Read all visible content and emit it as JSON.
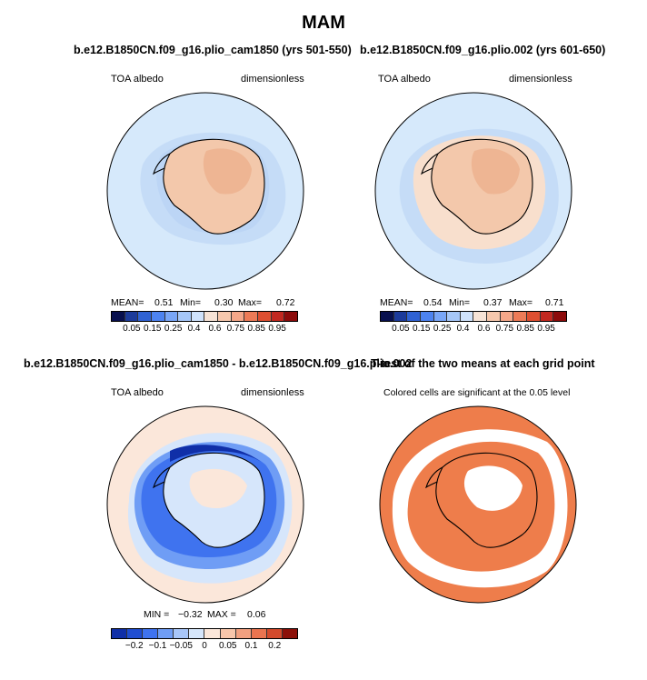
{
  "figure_title": "MAM",
  "panels": [
    {
      "title": "b.e12.B1850CN.f09_g16.plio_cam1850 (yrs 501-550)",
      "left_label": "TOA albedo",
      "right_label": "dimensionless",
      "stats": {
        "mean_label": "MEAN=",
        "mean": "0.51",
        "min_label": "Min=",
        "min": "0.30",
        "max_label": "Max=",
        "max": "0.72"
      },
      "colorbar": [
        "0.05",
        "0.15",
        "0.25",
        "0.4",
        "0.6",
        "0.75",
        "0.85",
        "0.95"
      ]
    },
    {
      "title": "b.e12.B1850CN.f09_g16.plio.002 (yrs 601-650)",
      "left_label": "TOA albedo",
      "right_label": "dimensionless",
      "stats": {
        "mean_label": "MEAN=",
        "mean": "0.54",
        "min_label": "Min=",
        "min": "0.37",
        "max_label": "Max=",
        "max": "0.71"
      },
      "colorbar": [
        "0.05",
        "0.15",
        "0.25",
        "0.4",
        "0.6",
        "0.75",
        "0.85",
        "0.95"
      ]
    },
    {
      "title": "b.e12.B1850CN.f09_g16.plio_cam1850 - b.e12.B1850CN.f09_g16.plio.002",
      "left_label": "TOA albedo",
      "right_label": "dimensionless",
      "stats": {
        "min_label": "MIN =",
        "min": "−0.32",
        "max_label": "MAX =",
        "max": "0.06"
      },
      "colorbar": [
        "−0.2",
        "−0.1",
        "−0.05",
        "0",
        "0.05",
        "0.1",
        "0.2"
      ]
    },
    {
      "title": "T-test of the two means at each grid point",
      "subtitle": "Colored cells are significant at the 0.05 level"
    }
  ],
  "colors": {
    "abs_scale": [
      "#08104e",
      "#1c3b9b",
      "#2f62d4",
      "#4d83f0",
      "#79a6f7",
      "#a6c7f8",
      "#cfe2fb",
      "#f6e3d6",
      "#f6c8ad",
      "#f4a789",
      "#ed7b57",
      "#de4f31",
      "#c22820",
      "#8c0b0b"
    ],
    "diff_scale": [
      "#102fa8",
      "#1f4dd1",
      "#3f73ef",
      "#6f9df5",
      "#a8c6f8",
      "#d6e6fb",
      "#fbe7da",
      "#f8c6ab",
      "#f2a080",
      "#ea7450",
      "#d44a2c",
      "#8c1009"
    ],
    "ocean_light": "#d6e9fb",
    "ice_tan": "#f3c8ab",
    "ttest_orange": "#ee7d4b"
  },
  "chart_data": [
    {
      "type": "heatmap",
      "title": "b.e12.B1850CN.f09_g16.plio_cam1850 (yrs 501-550)",
      "variable": "TOA albedo",
      "units": "dimensionless",
      "mean": 0.51,
      "min": 0.3,
      "max": 0.72,
      "levels": [
        0.05,
        0.1,
        0.15,
        0.2,
        0.25,
        0.3,
        0.4,
        0.5,
        0.6,
        0.7,
        0.75,
        0.8,
        0.85,
        0.9,
        0.95
      ]
    },
    {
      "type": "heatmap",
      "title": "b.e12.B1850CN.f09_g16.plio.002 (yrs 601-650)",
      "variable": "TOA albedo",
      "units": "dimensionless",
      "mean": 0.54,
      "min": 0.37,
      "max": 0.71,
      "levels": [
        0.05,
        0.1,
        0.15,
        0.2,
        0.25,
        0.3,
        0.4,
        0.5,
        0.6,
        0.7,
        0.75,
        0.8,
        0.85,
        0.9,
        0.95
      ]
    },
    {
      "type": "heatmap",
      "title": "b.e12.B1850CN.f09_g16.plio_cam1850 - b.e12.B1850CN.f09_g16.plio.002",
      "variable": "TOA albedo",
      "units": "dimensionless",
      "min": -0.32,
      "max": 0.06,
      "levels": [
        -0.2,
        -0.15,
        -0.1,
        -0.075,
        -0.05,
        -0.025,
        0,
        0.025,
        0.05,
        0.075,
        0.1,
        0.15,
        0.2
      ]
    },
    {
      "type": "heatmap",
      "title": "T-test of the two means at each grid point",
      "note": "Colored cells are significant at the 0.05 level"
    }
  ]
}
